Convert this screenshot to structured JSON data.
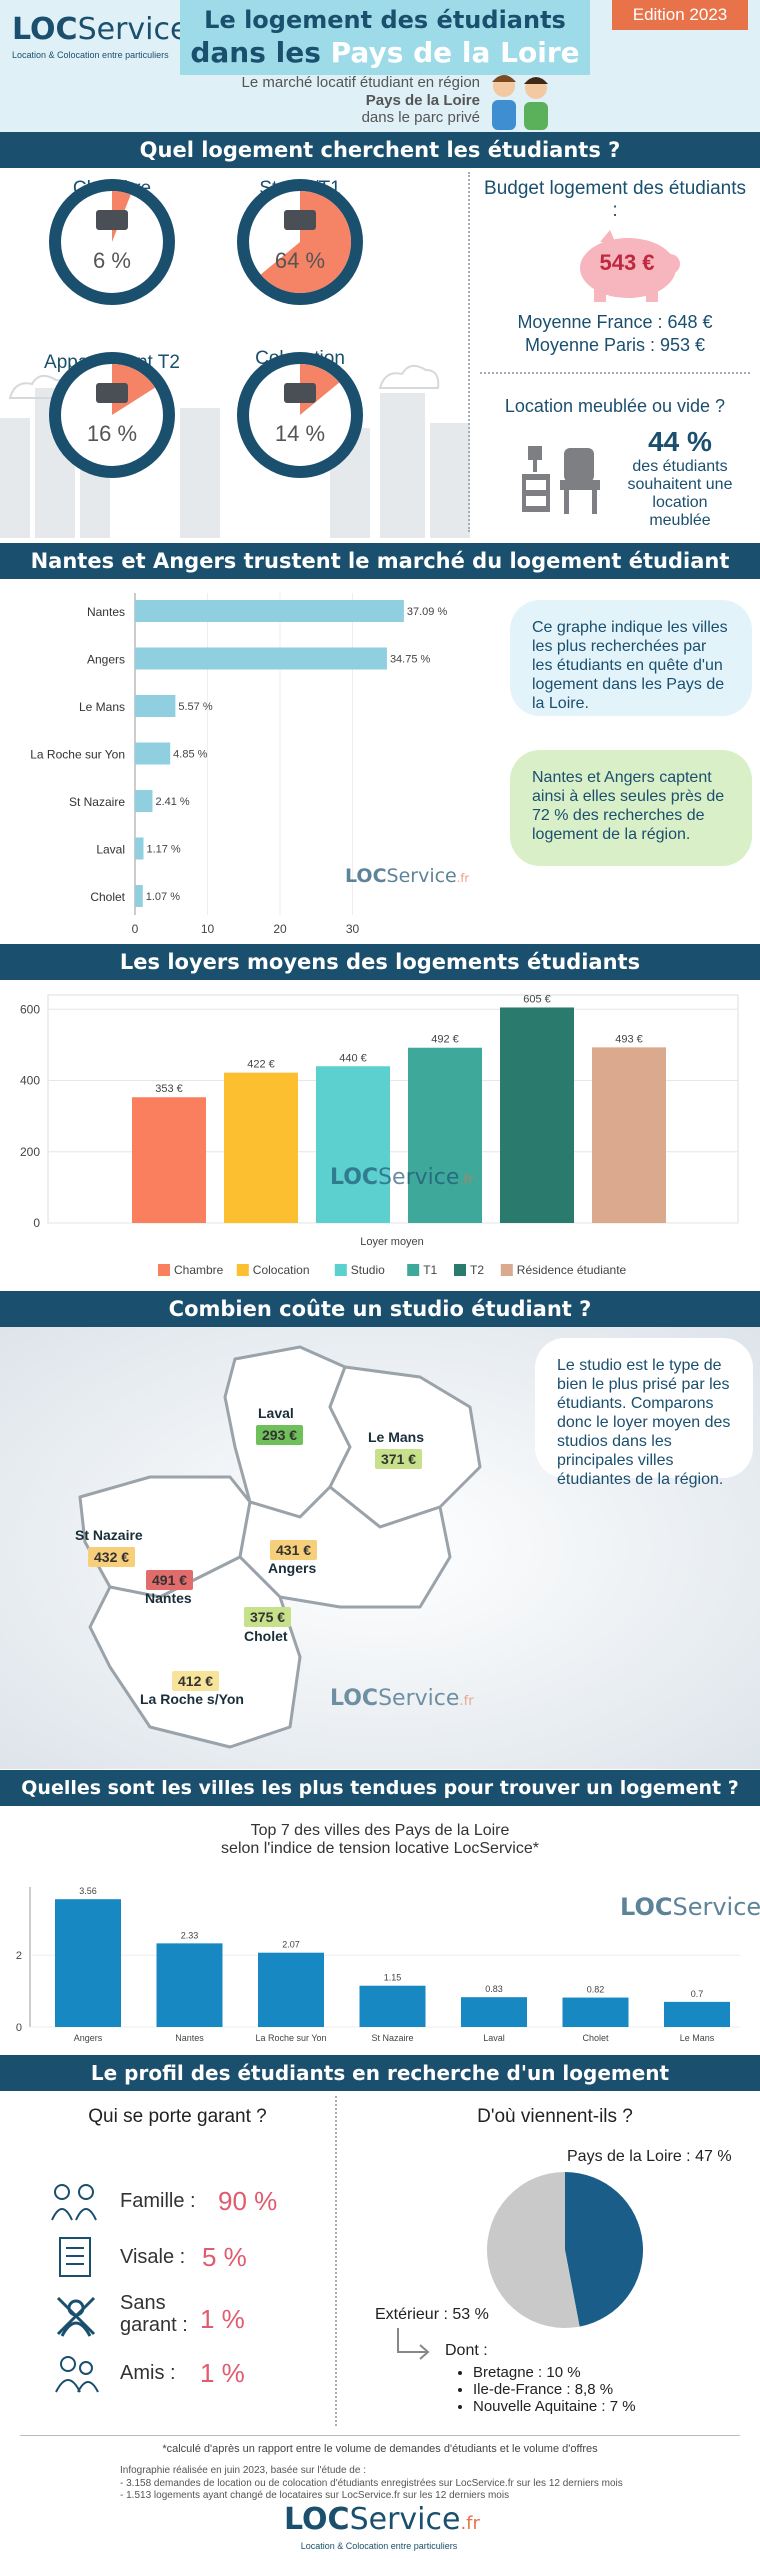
{
  "header": {
    "logo_loc": "LOC",
    "logo_service": "Service",
    "logo_fr": ".fr",
    "logo_tagline": "Location & Colocation entre particuliers",
    "title_line1": "Le logement des étudiants",
    "title_line2_prefix": "dans les ",
    "title_line2_highlight": "Pays de la Loire",
    "edition": "Edition 2023",
    "sub1": "Le marché locatif étudiant en région",
    "sub2": "Pays de la Loire",
    "sub3": "dans le parc privé"
  },
  "section1": {
    "title": "Quel logement cherchent les étudiants ?",
    "types": [
      {
        "label": "Chambre",
        "pct": "6 %",
        "value": 6
      },
      {
        "label": "Studio/T1",
        "pct": "64 %",
        "value": 64
      },
      {
        "label": "Appartement T2",
        "pct": "16 %",
        "value": 16
      },
      {
        "label": "Colocation",
        "pct": "14 %",
        "value": 14
      }
    ],
    "budget_title": "Budget logement des étudiants :",
    "budget_value": "543 €",
    "avg_france": "Moyenne France : 648 €",
    "avg_paris": "Moyenne Paris : 953 €",
    "furnished_title": "Location meublée ou vide ?",
    "furnished_pct": "44 %",
    "furnished_text": "des étudiants souhaitent une location meublée"
  },
  "section2": {
    "title": "Nantes et Angers trustent le marché du logement étudiant régional",
    "bubble1": "Ce graphe indique les villes les plus recherchées par les étudiants en quête d'un logement dans les Pays de la Loire.",
    "bubble2": "Nantes et Angers captent ainsi à elles seules près de 72 % des recherches de logement de la région."
  },
  "section3": {
    "title": "Les loyers moyens des logements étudiants"
  },
  "section4": {
    "title": "Combien coûte un studio étudiant ?",
    "bubble": "Le studio est le type de bien le plus prisé par les étudiants. Comparons donc le loyer moyen des studios dans les principales villes étudiantes de la région.",
    "cities": [
      {
        "name": "Laval",
        "price": "293 €",
        "color": "#6fbf5a"
      },
      {
        "name": "Le Mans",
        "price": "371 €",
        "color": "#c7e08a"
      },
      {
        "name": "St Nazaire",
        "price": "432 €",
        "color": "#f7cf7a"
      },
      {
        "name": "Angers",
        "price": "431 €",
        "color": "#f7cf7a"
      },
      {
        "name": "Nantes",
        "price": "491 €",
        "color": "#e26b6b"
      },
      {
        "name": "Cholet",
        "price": "375 €",
        "color": "#c7e08a"
      },
      {
        "name": "La Roche s/Yon",
        "price": "412 €",
        "color": "#f7e39a"
      }
    ]
  },
  "section5": {
    "title": "Quelles sont les villes les plus tendues pour trouver un logement  ?",
    "chart_title1": "Top 7 des villes des Pays de la Loire",
    "chart_title2": "selon l'indice de tension locative LocService*"
  },
  "section6": {
    "title": "Le profil des étudiants en recherche d'un logement",
    "garant_title": "Qui se porte garant ?",
    "garants": [
      {
        "label": "Famille :",
        "value": "90 %",
        "icon": "family-icon"
      },
      {
        "label": "Visale :",
        "value": "5 %",
        "icon": "document-icon"
      },
      {
        "label": "Sans garant :",
        "value": "1 %",
        "icon": "no-garant-icon"
      },
      {
        "label": "Amis :",
        "value": "1 %",
        "icon": "friends-icon"
      }
    ],
    "origin_title": "D'où viennent-ils ?",
    "origin_pdl": "Pays de la Loire : 47 %",
    "origin_ext": "Extérieur : 53 %",
    "dont": "Dont :",
    "dont_items": [
      "Bretagne : 10 %",
      "Ile-de-France : 8,8 %",
      "Nouvelle Aquitaine : 7 %"
    ]
  },
  "footer": {
    "note": "*calculé d'après un rapport entre le volume de demandes d'étudiants et le volume d'offres",
    "line1": "Infographie réalisée en juin 2023, basée sur l'étude de :",
    "line2": "- 3.158 demandes de location ou de colocation d'étudiants enregistrées sur LocService.fr sur les 12 derniers mois",
    "line3": "- 1.513 logements ayant changé de locataires sur LocService.fr sur les 12 derniers mois"
  },
  "chart_data": [
    {
      "type": "bar",
      "orientation": "horizontal",
      "categories": [
        "Nantes",
        "Angers",
        "Le Mans",
        "La Roche sur Yon",
        "St Nazaire",
        "Laval",
        "Cholet"
      ],
      "values": [
        37.09,
        34.75,
        5.57,
        4.85,
        2.41,
        1.17,
        1.07
      ],
      "value_labels": [
        "37.09 %",
        "34.75 %",
        "5.57 %",
        "4.85 %",
        "2.41 %",
        "1.17 %",
        "1.07 %"
      ],
      "xticks": [
        "0",
        "10",
        "20",
        "30"
      ],
      "xlim": [
        0,
        40
      ],
      "color": "#8fcfe0"
    },
    {
      "type": "bar",
      "categories": [
        "Chambre",
        "Colocation",
        "Studio",
        "T1",
        "T2",
        "Résidence étudiante"
      ],
      "values": [
        353,
        422,
        440,
        492,
        605,
        493
      ],
      "value_labels": [
        "353 €",
        "422 €",
        "440 €",
        "492 €",
        "605 €",
        "493 €"
      ],
      "colors": [
        "#fa7f5f",
        "#fbbf2f",
        "#5ccfcf",
        "#3ea89a",
        "#2b7a6e",
        "#dba98e"
      ],
      "xlabel": "Loyer moyen",
      "yticks": [
        "0",
        "200",
        "400",
        "600"
      ],
      "ylim": [
        0,
        640
      ],
      "legend": "bottom"
    },
    {
      "type": "bar",
      "categories": [
        "Angers",
        "Nantes",
        "La Roche sur Yon",
        "St Nazaire",
        "Laval",
        "Cholet",
        "Le Mans"
      ],
      "values": [
        3.56,
        2.33,
        2.07,
        1.15,
        0.83,
        0.82,
        0.7
      ],
      "value_labels": [
        "3.56",
        "2.33",
        "2.07",
        "1.15",
        "0.83",
        "0.82",
        "0.7"
      ],
      "yticks": [
        "0",
        "2"
      ],
      "ylim": [
        0,
        3.9
      ],
      "color": "#1788c2"
    },
    {
      "type": "pie",
      "categories": [
        "Pays de la Loire",
        "Extérieur"
      ],
      "values": [
        47,
        53
      ],
      "colors": [
        "#1a5d88",
        "#c9c9c9"
      ]
    }
  ]
}
